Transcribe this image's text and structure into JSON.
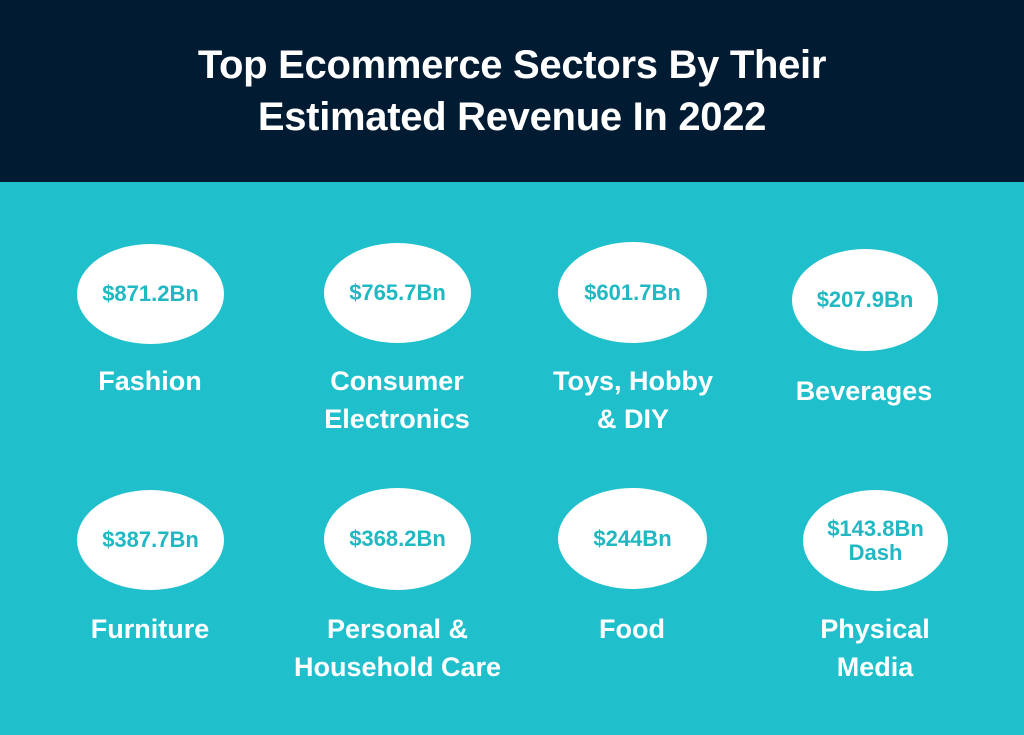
{
  "header": {
    "title_line1": "Top Ecommerce Sectors By Their",
    "title_line2": "Estimated Revenue In 2022"
  },
  "sectors": [
    {
      "value": "$871.2Bn",
      "label": "Fashion"
    },
    {
      "value": "$765.7Bn",
      "label": "Consumer\nElectronics"
    },
    {
      "value": "$601.7Bn",
      "label": "Toys, Hobby\n& DIY"
    },
    {
      "value": "$207.9Bn",
      "label": "Beverages"
    },
    {
      "value": "$387.7Bn",
      "label": "Furniture"
    },
    {
      "value": "$368.2Bn",
      "label": "Personal &\nHousehold Care"
    },
    {
      "value": "$244Bn",
      "label": "Food"
    },
    {
      "value": "$143.8Bn\nDash",
      "label": "Physical\nMedia"
    }
  ],
  "colors": {
    "header_background": "#011b33",
    "page_background": "#1fc0cb",
    "oval_fill": "#ffffff",
    "value_text": "#1fb8c3",
    "label_text": "#ffffff"
  }
}
